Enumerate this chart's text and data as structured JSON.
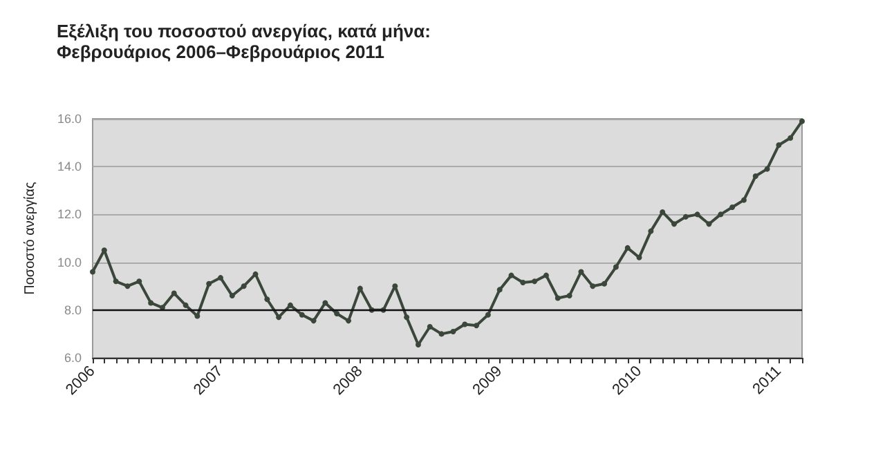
{
  "chart_data": {
    "type": "line",
    "title": "Εξέλιξη του ποσοστού ανεργίας, κατά μήνα: Φεβρουάριος 2006–Φεβρουάριος 2011",
    "ylabel": "Ποσοστό ανεργίας",
    "categories": [
      "2006",
      null,
      null,
      null,
      null,
      null,
      null,
      null,
      null,
      null,
      null,
      "2007",
      null,
      null,
      null,
      null,
      null,
      null,
      null,
      null,
      null,
      null,
      null,
      "2008",
      null,
      null,
      null,
      null,
      null,
      null,
      null,
      null,
      null,
      null,
      null,
      "2009",
      null,
      null,
      null,
      null,
      null,
      null,
      null,
      null,
      null,
      null,
      null,
      "2010",
      null,
      null,
      null,
      null,
      null,
      null,
      null,
      null,
      null,
      null,
      null,
      "2011",
      null,
      null
    ],
    "series": [
      {
        "color": "#3a473a",
        "values": [
          9.6,
          10.5,
          9.2,
          9.0,
          9.2,
          8.3,
          8.1,
          8.7,
          8.2,
          7.75,
          9.1,
          9.35,
          8.6,
          9.0,
          9.5,
          8.45,
          7.7,
          8.2,
          7.8,
          7.55,
          8.3,
          7.85,
          7.55,
          8.9,
          8.0,
          8.0,
          9.0,
          7.7,
          6.55,
          7.3,
          7.0,
          7.1,
          7.4,
          7.35,
          7.8,
          8.85,
          9.45,
          9.15,
          9.2,
          9.45,
          8.5,
          8.6,
          9.6,
          9.0,
          9.1,
          9.8,
          10.6,
          10.2,
          11.3,
          12.1,
          11.6,
          11.9,
          12.0,
          11.6,
          12.0,
          12.3,
          12.6,
          13.6,
          13.9,
          14.9,
          15.2,
          15.9
        ]
      }
    ],
    "ylim": [
      6,
      16
    ],
    "yticks": [
      {
        "value": 6,
        "label": "6.0"
      },
      {
        "value": 8,
        "label": "8.0"
      },
      {
        "value": 10,
        "label": "10.0"
      },
      {
        "value": 12,
        "label": "12.0"
      },
      {
        "value": 14,
        "label": "14.0"
      },
      {
        "value": 16,
        "label": "16.0"
      }
    ],
    "grid": "y",
    "marker": "circle",
    "line_style": "solid",
    "ref_lines": [
      {
        "axis": "y",
        "value": 8,
        "color": "#111111"
      }
    ]
  }
}
